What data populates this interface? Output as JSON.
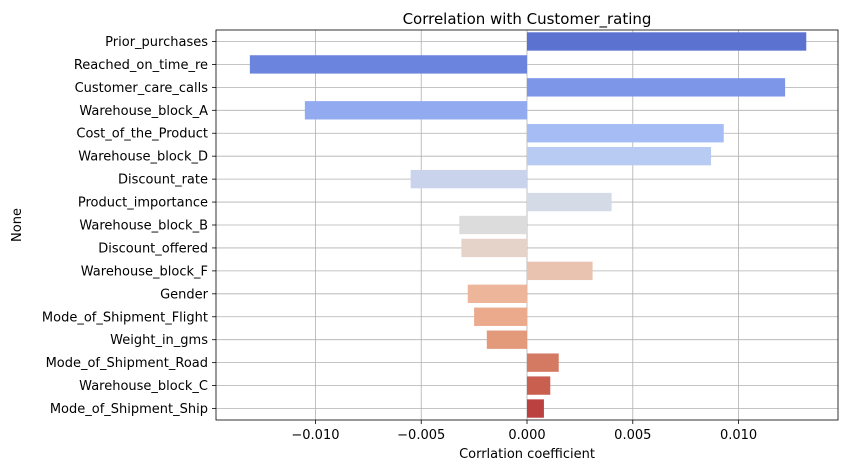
{
  "chart_data": {
    "type": "bar",
    "orientation": "horizontal",
    "title": "Correlation with Customer_rating",
    "xlabel": "Corrlation coefficient",
    "ylabel": "None",
    "xlim": [
      -0.0147,
      0.0147
    ],
    "xticks": [
      -0.01,
      -0.005,
      0.0,
      0.005,
      0.01
    ],
    "xtick_labels": [
      "−0.010",
      "−0.005",
      "0.000",
      "0.005",
      "0.010"
    ],
    "grid": true,
    "categories": [
      "Prior_purchases",
      "Reached_on_time_re",
      "Customer_care_calls",
      "Warehouse_block_A",
      "Cost_of_the_Product",
      "Warehouse_block_D",
      "Discount_rate",
      "Product_importance",
      "Warehouse_block_B",
      "Discount_offered",
      "Warehouse_block_F",
      "Gender",
      "Mode_of_Shipment_Flight",
      "Weight_in_gms",
      "Mode_of_Shipment_Road",
      "Warehouse_block_C",
      "Mode_of_Shipment_Ship"
    ],
    "values": [
      0.0132,
      -0.0131,
      0.0122,
      -0.0105,
      0.0093,
      0.0087,
      -0.0055,
      0.004,
      -0.0032,
      -0.0031,
      0.0031,
      -0.0028,
      -0.0025,
      -0.0019,
      0.0015,
      0.0011,
      0.0008
    ],
    "colors": [
      "#5b72d0",
      "#6b84de",
      "#7d96e8",
      "#91aaf0",
      "#a5bdf4",
      "#b8cbf2",
      "#c9d4ec",
      "#d4dbe6",
      "#dcdcdc",
      "#e5d2c9",
      "#e9c2b0",
      "#edb59a",
      "#ebaa8c",
      "#e29a7b",
      "#d47a62",
      "#c85f4f",
      "#bb4040"
    ]
  }
}
